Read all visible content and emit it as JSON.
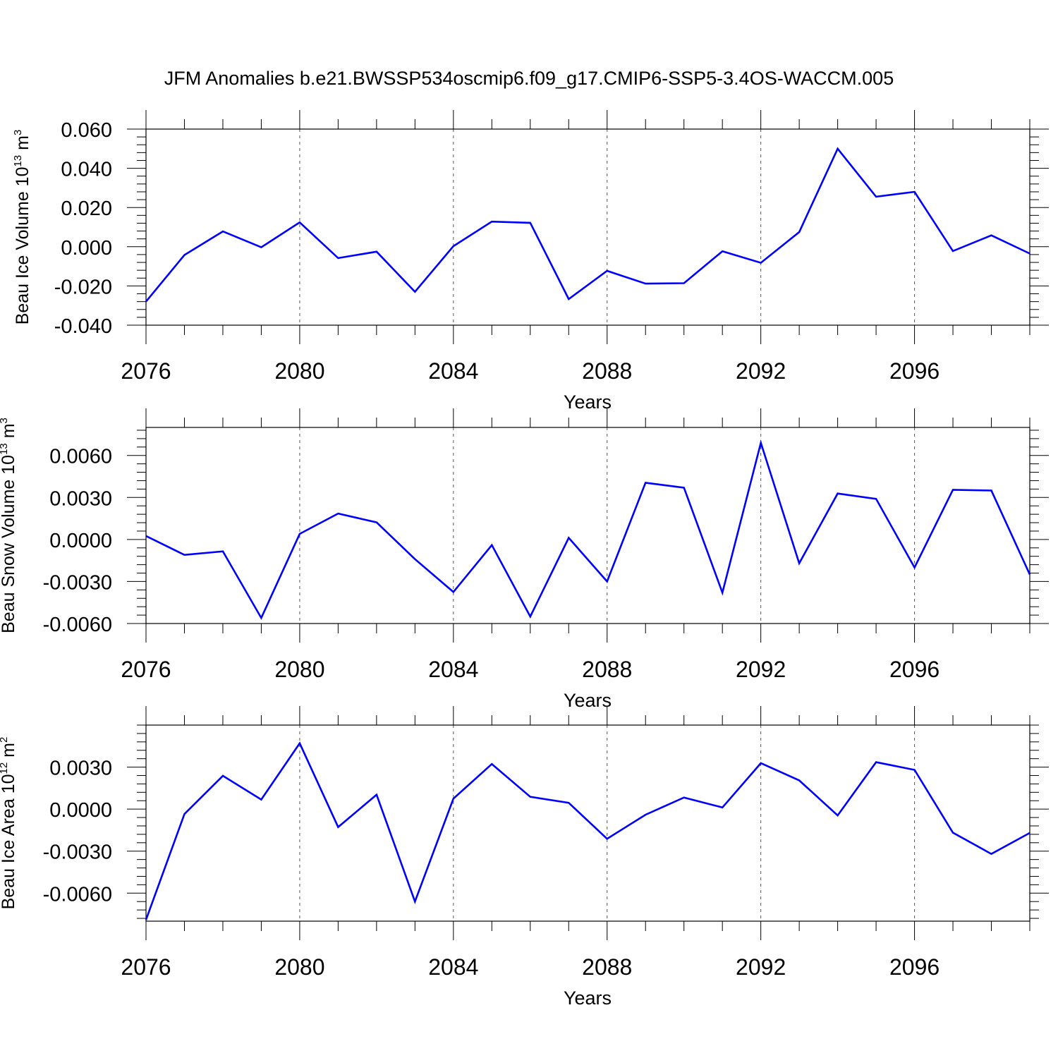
{
  "chart_data": {
    "type": "line",
    "title": "JFM Anomalies b.e21.BWSSP534oscmip6.f09_g17.CMIP6-SSP5-3.4OS-WACCM.005",
    "line_color": "#0000ff",
    "x": [
      2076,
      2077,
      2078,
      2079,
      2080,
      2081,
      2082,
      2083,
      2084,
      2085,
      2086,
      2087,
      2088,
      2089,
      2090,
      2091,
      2092,
      2093,
      2094,
      2095,
      2096,
      2097,
      2098,
      2099
    ],
    "xlim": [
      2076,
      2099
    ],
    "xticks": [
      2076,
      2080,
      2084,
      2088,
      2092,
      2096
    ],
    "xtick_labels": [
      "2076",
      "2080",
      "2084",
      "2088",
      "2092",
      "2096"
    ],
    "grid": "vertical dashed lines at labeled x ticks",
    "panels": [
      {
        "xlabel": "Years",
        "ylabel_text": "Beau Ice Volume 10",
        "ylabel_exp": "13",
        "ylabel_unit": " m",
        "ylabel_unit_exp": "3",
        "ylim": [
          -0.04,
          0.06
        ],
        "yticks": [
          -0.04,
          -0.02,
          0.0,
          0.02,
          0.04,
          0.06
        ],
        "ytick_labels": [
          "-0.040",
          "-0.020",
          "0.000",
          "0.020",
          "0.040",
          "0.060"
        ],
        "values": [
          -0.028,
          -0.0042,
          0.0078,
          -0.0003,
          0.0124,
          -0.0058,
          -0.0025,
          -0.023,
          0.0003,
          0.0128,
          0.0122,
          -0.0267,
          -0.0123,
          -0.0188,
          -0.0186,
          -0.0023,
          -0.0082,
          0.0075,
          0.05,
          0.0255,
          0.028,
          -0.0022,
          0.0058,
          -0.0035
        ]
      },
      {
        "xlabel": "Years",
        "ylabel_text": "Beau Snow Volume 10",
        "ylabel_exp": "13",
        "ylabel_unit": " m",
        "ylabel_unit_exp": "3",
        "ylim": [
          -0.006,
          0.008
        ],
        "yticks": [
          -0.006,
          -0.003,
          0.0,
          0.003,
          0.006
        ],
        "ytick_labels": [
          "-0.0060",
          "-0.0030",
          "0.0000",
          "0.0030",
          "0.0060"
        ],
        "values": [
          0.00025,
          -0.0011,
          -0.00085,
          -0.0056,
          0.0004,
          0.00185,
          0.00122,
          -0.0014,
          -0.00375,
          -0.0004,
          -0.0055,
          0.00012,
          -0.003,
          0.00405,
          0.0037,
          -0.0038,
          0.0069,
          -0.0017,
          0.00328,
          0.0029,
          -0.002,
          0.00355,
          0.0035,
          -0.0025
        ]
      },
      {
        "xlabel": "Years",
        "ylabel_text": "Beau Ice Area 10",
        "ylabel_exp": "12",
        "ylabel_unit": " m",
        "ylabel_unit_exp": "2",
        "ylim": [
          -0.008,
          0.006
        ],
        "yticks": [
          -0.006,
          -0.003,
          0.0,
          0.003
        ],
        "ytick_labels": [
          "-0.0060",
          "-0.0030",
          "0.0000",
          "0.0030"
        ],
        "values": [
          -0.0079,
          -0.00035,
          0.00238,
          0.00068,
          0.0047,
          -0.00128,
          0.00103,
          -0.0066,
          0.00075,
          0.00322,
          0.00088,
          0.00045,
          -0.00212,
          -0.0004,
          0.00083,
          0.00012,
          0.00328,
          0.00205,
          -0.00045,
          0.00335,
          0.0028,
          -0.00168,
          -0.0032,
          -0.0017
        ]
      }
    ]
  }
}
